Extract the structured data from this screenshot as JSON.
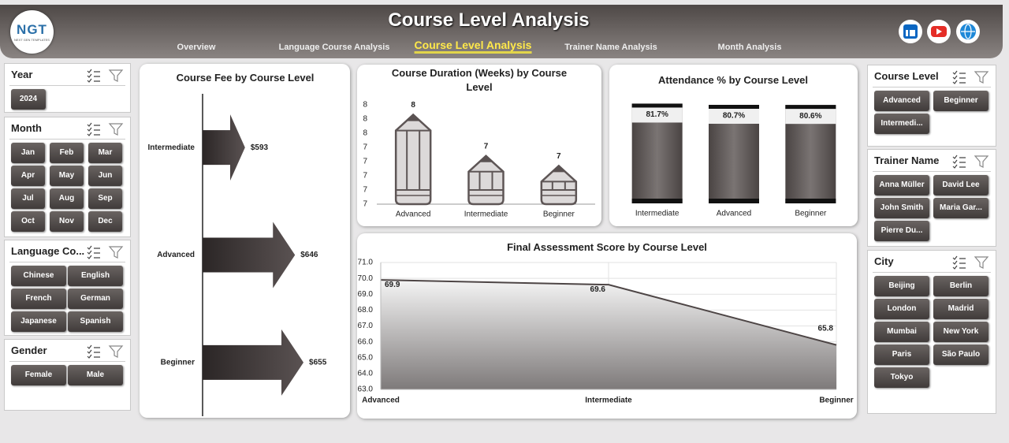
{
  "header": {
    "logo_text": "NGT",
    "logo_tagline": "NEXT GEN TEMPLATES",
    "title": "Course Level Analysis",
    "nav": [
      {
        "label": "Overview",
        "active": false
      },
      {
        "label": "Language Course Analysis",
        "active": false
      },
      {
        "label": "Course Level Analysis",
        "active": true
      },
      {
        "label": "Trainer Name Analysis",
        "active": false
      },
      {
        "label": "Month Analysis",
        "active": false
      }
    ]
  },
  "slicers": [
    {
      "title": "Year",
      "items": [
        "2024"
      ]
    },
    {
      "title": "Month",
      "items": [
        "Jan",
        "Feb",
        "Mar",
        "Apr",
        "May",
        "Jun",
        "Jul",
        "Aug",
        "Sep",
        "Oct",
        "Nov",
        "Dec"
      ]
    },
    {
      "title": "Language Co...",
      "items": [
        "Chinese",
        "English",
        "French",
        "German",
        "Japanese",
        "Spanish"
      ]
    },
    {
      "title": "Gender",
      "items": [
        "Female",
        "Male"
      ]
    },
    {
      "title": "Course Level",
      "items": [
        "Advanced",
        "Beginner",
        "Intermedi..."
      ]
    },
    {
      "title": "Trainer Name",
      "items": [
        "Anna Müller",
        "David Lee",
        "John Smith",
        "Maria Gar...",
        "Pierre Du..."
      ]
    },
    {
      "title": "City",
      "items": [
        "Beijing",
        "Berlin",
        "London",
        "Madrid",
        "Mumbai",
        "New York",
        "Paris",
        "São Paulo",
        "Tokyo"
      ]
    }
  ],
  "chart_data": [
    {
      "type": "bar",
      "bar_shape": "arrow",
      "orientation": "horizontal",
      "title": "Course Fee by Course Level",
      "categories": [
        "Intermediate",
        "Advanced",
        "Beginner"
      ],
      "values": [
        593,
        646,
        655
      ],
      "value_labels": [
        "$593",
        "$646",
        "$655"
      ],
      "xlim": [
        548,
        660
      ],
      "color": "#3a3434"
    },
    {
      "type": "bar",
      "bar_shape": "pencil",
      "title": "Course Duration (Weeks) by Course Level",
      "categories": [
        "Advanced",
        "Intermediate",
        "Beginner"
      ],
      "values": [
        7.63,
        7.34,
        7.27
      ],
      "value_labels": [
        "8",
        "7",
        "7"
      ],
      "ylim": [
        7,
        7.7
      ],
      "yticks": [
        7,
        {
          "value": 7.1,
          "label": "7"
        },
        {
          "value": 7.2,
          "label": "7"
        },
        {
          "value": 7.3,
          "label": "7"
        },
        {
          "value": 7.4,
          "label": "7"
        },
        {
          "value": 7.5,
          "label": "8"
        },
        {
          "value": 7.6,
          "label": "8"
        },
        {
          "value": 7.7,
          "label": "8"
        }
      ],
      "color": "#dcd9d9"
    },
    {
      "type": "bar",
      "bar_shape": "cylinder",
      "title": "Attendance % by Course Level",
      "categories": [
        "Intermediate",
        "Advanced",
        "Beginner"
      ],
      "values": [
        81.7,
        80.7,
        80.6
      ],
      "value_labels": [
        "81.7%",
        "80.7%",
        "80.6%"
      ],
      "ylim": [
        0,
        82
      ],
      "color": "#6a6463"
    },
    {
      "type": "area",
      "title": "Final Assessment Score by Course Level",
      "categories": [
        "Advanced",
        "Intermediate",
        "Beginner"
      ],
      "values": [
        69.9,
        69.6,
        65.8
      ],
      "ylim": [
        63,
        71
      ],
      "yticks": [
        {
          "value": 63,
          "label": "63.0"
        },
        {
          "value": 64,
          "label": "64.0"
        },
        {
          "value": 65,
          "label": "65.0"
        },
        {
          "value": 66,
          "label": "66.0"
        },
        {
          "value": 67,
          "label": "67.0"
        },
        {
          "value": 68,
          "label": "68.0"
        },
        {
          "value": 69,
          "label": "69.0"
        },
        {
          "value": 70,
          "label": "70.0"
        },
        {
          "value": 71,
          "label": "71.0"
        }
      ],
      "grid": true,
      "color": "#4d4545"
    }
  ]
}
